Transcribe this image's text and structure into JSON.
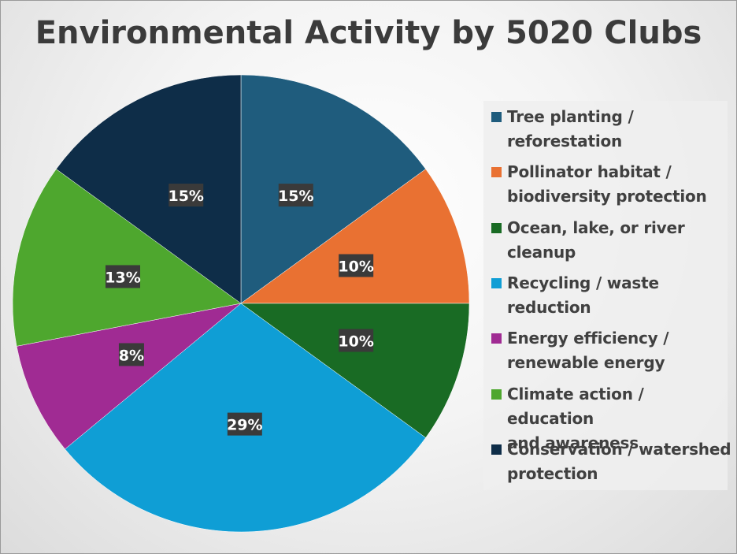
{
  "chart_data": {
    "type": "pie",
    "title": "Environmental Activity by 5020 Clubs",
    "categories": [
      "Tree planting / reforestation",
      "Pollinator habitat / biodiversity protection",
      "Ocean, lake, or river cleanup",
      "Recycling / waste reduction",
      "Energy efficiency / renewable energy",
      "Climate action / education and awareness",
      "Conservation / watershed protection"
    ],
    "legend_lines": [
      [
        "Tree planting /",
        "reforestation"
      ],
      [
        "Pollinator habitat /",
        "biodiversity protection"
      ],
      [
        "Ocean, lake, or river",
        "cleanup"
      ],
      [
        "Recycling / waste",
        "reduction"
      ],
      [
        "Energy efficiency /",
        "renewable energy"
      ],
      [
        "Climate action / education",
        "and awareness"
      ],
      [
        "Conservation / watershed",
        "protection"
      ]
    ],
    "values": [
      15,
      10,
      10,
      29,
      8,
      13,
      15
    ],
    "data_labels": [
      "15%",
      "10%",
      "10%",
      "29%",
      "8%",
      "13%",
      "15%"
    ],
    "colors": [
      "#1f5c7d",
      "#e97132",
      "#196b24",
      "#0f9ed5",
      "#a02b93",
      "#4ea72e",
      "#0e2d48"
    ],
    "legend_position": "right"
  }
}
